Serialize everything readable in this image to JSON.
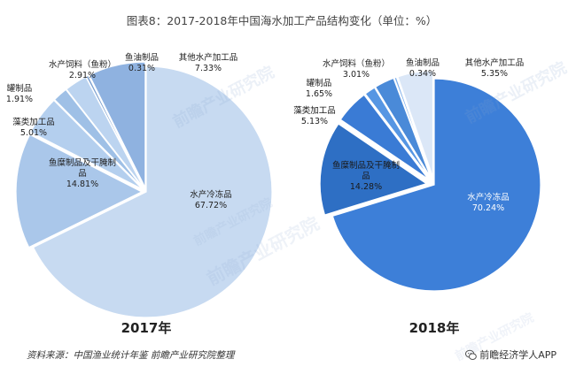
{
  "title": "图表8：2017-2018年中国海水加工产品结构变化（单位：%）",
  "source": "资料来源：中国渔业统计年鉴 前瞻产业研究院整理",
  "brand": "前瞻经济学人APP",
  "watermark_text": "前瞻产业研究院",
  "colors": {
    "frozen_2017": "#c7daf1",
    "frozen_2018": "#3d7fd8",
    "slice_2017": [
      "#aac7ea",
      "#b4cfee",
      "#9fc0e6",
      "#bcd4f0",
      "#7a9fd0",
      "#8fb2e0"
    ],
    "slice_2018": [
      "#2e6fc4",
      "#3a7bd5",
      "#5696e3",
      "#4a8ad8",
      "#7fb0ec",
      "#dbe7f7"
    ]
  },
  "chart_data": [
    {
      "type": "pie",
      "year_label": "2017年",
      "slices": [
        {
          "name": "水产冷冻品",
          "value": 67.72,
          "label": "67.72%"
        },
        {
          "name": "鱼糜制品及干腌制品",
          "value": 14.81,
          "label": "14.81%"
        },
        {
          "name": "藻类加工品",
          "value": 5.01,
          "label": "5.01%"
        },
        {
          "name": "罐制品",
          "value": 1.91,
          "label": "1.91%"
        },
        {
          "name": "水产饲料（鱼粉）",
          "value": 2.91,
          "label": "2.91%"
        },
        {
          "name": "鱼油制品",
          "value": 0.31,
          "label": "0.31%"
        },
        {
          "name": "其他水产加工品",
          "value": 7.33,
          "label": "7.33%"
        }
      ]
    },
    {
      "type": "pie",
      "year_label": "2018年",
      "slices": [
        {
          "name": "水产冷冻品",
          "value": 70.24,
          "label": "70.24%"
        },
        {
          "name": "鱼糜制品及干腌制品",
          "value": 14.28,
          "label": "14.28%"
        },
        {
          "name": "藻类加工品",
          "value": 5.13,
          "label": "5.13%"
        },
        {
          "name": "罐制品",
          "value": 1.65,
          "label": "1.65%"
        },
        {
          "name": "水产饲料（鱼粉）",
          "value": 3.01,
          "label": "3.01%"
        },
        {
          "name": "鱼油制品",
          "value": 0.34,
          "label": "0.34%"
        },
        {
          "name": "其他水产加工品",
          "value": 5.35,
          "label": "5.35%"
        }
      ]
    }
  ]
}
